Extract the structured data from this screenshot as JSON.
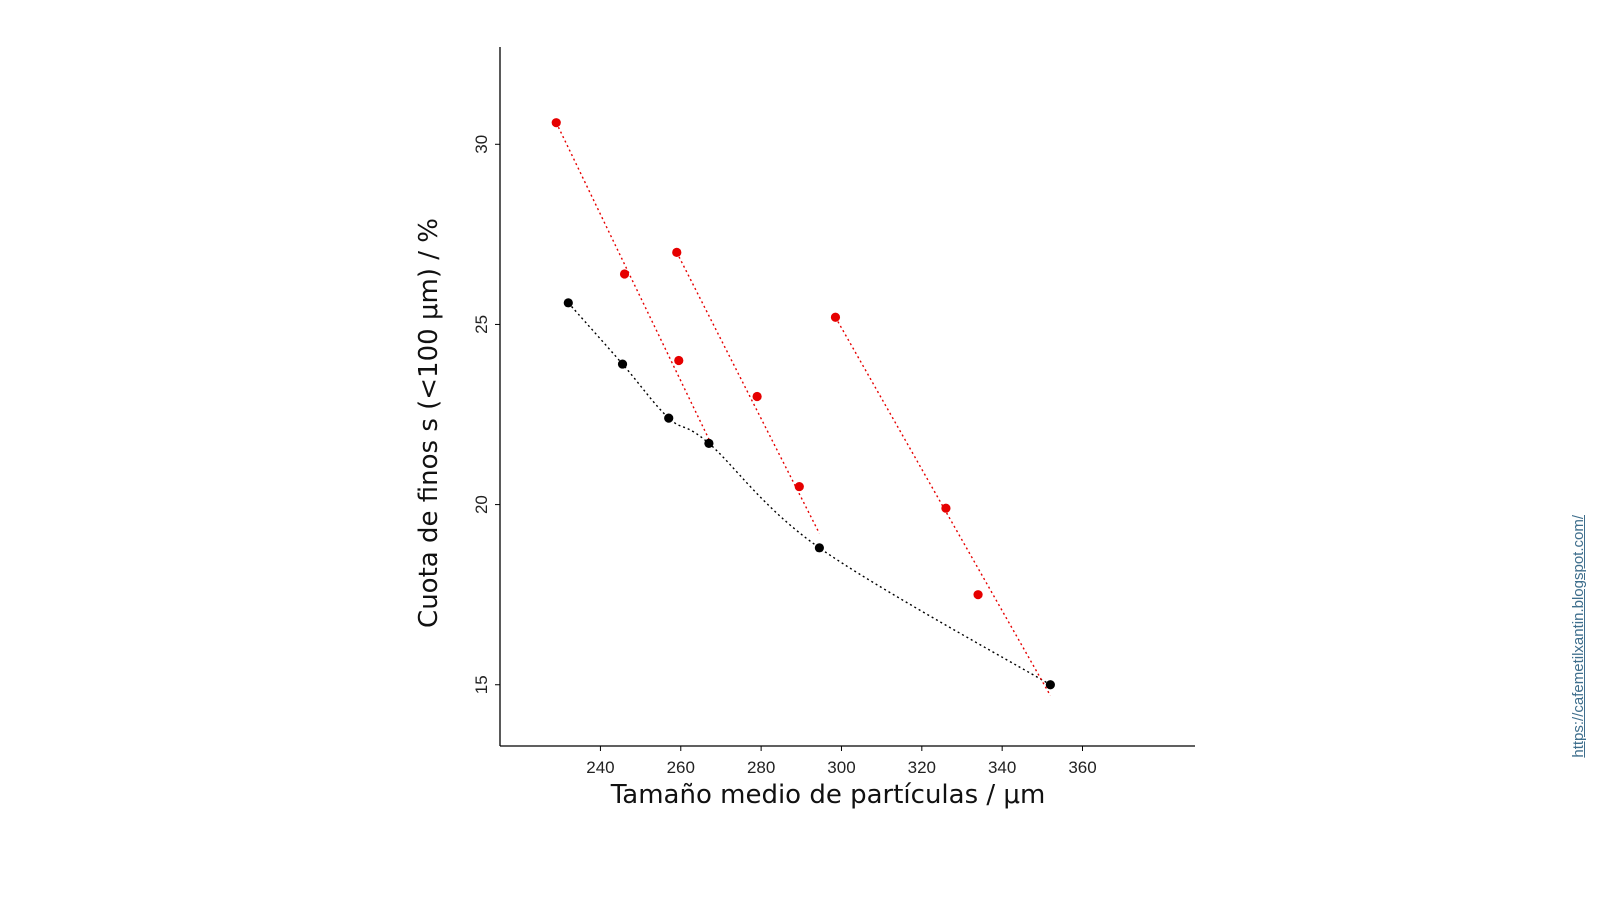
{
  "chart_data": {
    "type": "scatter",
    "title": "",
    "xlabel": "Tamaño medio de partículas / μm",
    "ylabel": "Cuota de finos s (<100 μm) / %",
    "xlim": [
      215,
      388
    ],
    "ylim": [
      13.3,
      32.7
    ],
    "x_ticks": [
      240,
      260,
      280,
      300,
      320,
      340,
      360
    ],
    "y_ticks": [
      15,
      20,
      25,
      30
    ],
    "grid": false,
    "series": [
      {
        "color": "#000000",
        "line": "dotted curve",
        "points": [
          {
            "x": 232,
            "y": 25.6
          },
          {
            "x": 245.5,
            "y": 23.9
          },
          {
            "x": 257,
            "y": 22.4
          },
          {
            "x": 267,
            "y": 21.7
          },
          {
            "x": 294.5,
            "y": 18.8
          },
          {
            "x": 352,
            "y": 15.0
          }
        ]
      },
      {
        "color": "#e60000",
        "line": "dotted",
        "points": [
          {
            "x": 229,
            "y": 30.6
          },
          {
            "x": 246,
            "y": 26.4
          },
          {
            "x": 259.5,
            "y": 24.0
          }
        ],
        "fit_line": [
          {
            "x": 229,
            "y": 30.6
          },
          {
            "x": 267.5,
            "y": 21.7
          }
        ]
      },
      {
        "color": "#e60000",
        "line": "dotted",
        "points": [
          {
            "x": 259,
            "y": 27.0
          },
          {
            "x": 279,
            "y": 23.0
          },
          {
            "x": 289.5,
            "y": 20.5
          }
        ],
        "fit_line": [
          {
            "x": 259,
            "y": 27.0
          },
          {
            "x": 294.5,
            "y": 19.2
          }
        ]
      },
      {
        "color": "#e60000",
        "line": "dotted",
        "points": [
          {
            "x": 298.5,
            "y": 25.2
          },
          {
            "x": 326,
            "y": 19.9
          },
          {
            "x": 334,
            "y": 17.5
          }
        ],
        "fit_line": [
          {
            "x": 298.5,
            "y": 25.2
          },
          {
            "x": 352,
            "y": 14.7
          }
        ]
      }
    ]
  },
  "watermark": {
    "text": "https://cafemetilxantin.blogspot.com/"
  }
}
